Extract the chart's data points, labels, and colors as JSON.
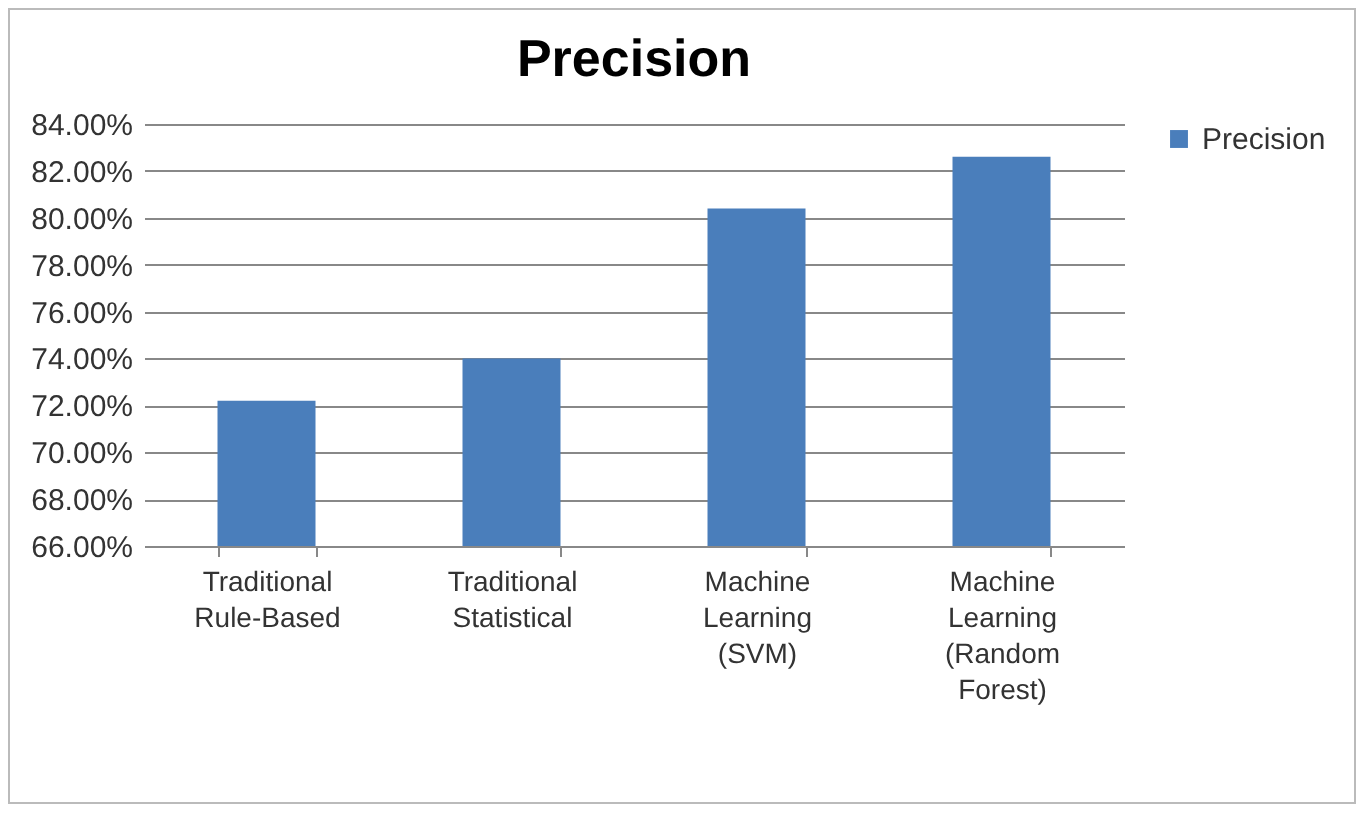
{
  "chart_data": {
    "type": "bar",
    "title": "Precision",
    "categories": [
      "Traditional Rule-Based",
      "Traditional Statistical",
      "Machine Learning (SVM)",
      "Machine Learning (Random Forest)"
    ],
    "series": [
      {
        "name": "Precision",
        "color": "#4a7ebb",
        "values": [
          72.2,
          74.0,
          80.4,
          82.6
        ]
      }
    ],
    "ylim": [
      66,
      84
    ],
    "yticks": [
      {
        "value": 66,
        "label": "66.00%"
      },
      {
        "value": 68,
        "label": "68.00%"
      },
      {
        "value": 70,
        "label": "70.00%"
      },
      {
        "value": 72,
        "label": "72.00%"
      },
      {
        "value": 74,
        "label": "74.00%"
      },
      {
        "value": 76,
        "label": "76.00%"
      },
      {
        "value": 78,
        "label": "78.00%"
      },
      {
        "value": 80,
        "label": "80.00%"
      },
      {
        "value": 82,
        "label": "82.00%"
      },
      {
        "value": 84,
        "label": "84.00%"
      }
    ],
    "grid": "y",
    "legend": "right"
  }
}
